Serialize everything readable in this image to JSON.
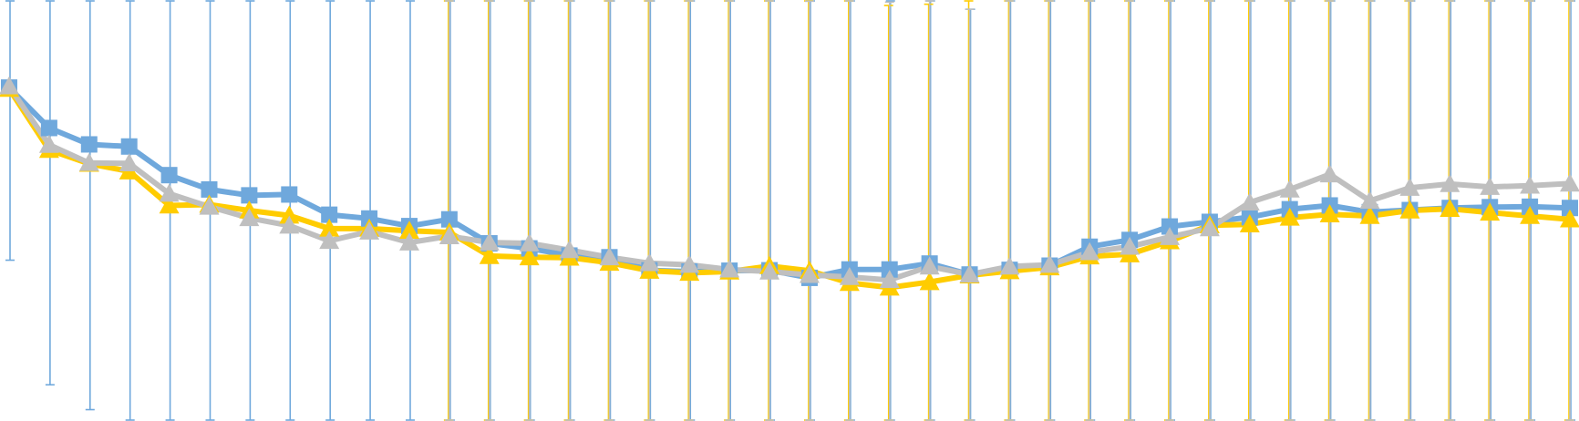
{
  "chart_data": {
    "type": "line",
    "title": "",
    "xlabel": "",
    "ylabel": "",
    "error_bars": true,
    "grid": false,
    "legend": "none",
    "x": [
      1,
      2,
      3,
      4,
      5,
      6,
      7,
      8,
      9,
      10,
      11,
      12,
      13,
      14,
      15,
      16,
      17,
      18,
      19,
      20,
      21,
      22,
      23,
      24,
      25,
      26,
      27,
      28,
      29,
      30,
      31,
      32,
      33,
      34,
      35,
      36,
      37,
      38,
      39,
      40
    ],
    "ylim": [
      0,
      100
    ],
    "series": [
      {
        "color": "#6FA8DC",
        "marker": "square",
        "values": [
          79.2,
          69.6,
          65.7,
          65.2,
          58.4,
          55.0,
          53.6,
          53.8,
          49.0,
          48.1,
          46.3,
          47.9,
          42.2,
          41.0,
          39.3,
          38.9,
          35.8,
          35.5,
          35.7,
          35.8,
          34.0,
          36.0,
          36.0,
          37.4,
          34.8,
          35.9,
          36.9,
          41.4,
          43.0,
          46.2,
          47.3,
          48.4,
          50.3,
          51.2,
          49.6,
          50.1,
          50.6,
          50.8,
          50.9,
          50.6
        ],
        "err": [
          41.0,
          61.0,
          63.0,
          65.0,
          67.0,
          69.0,
          67.0,
          68.0,
          70.0,
          71.0,
          69.0,
          67.0,
          65.0,
          64.0,
          65.0,
          63.0,
          65.0,
          65.0,
          66.0,
          66.0,
          66.0,
          66.0,
          66.0,
          66.0,
          63.0,
          66.0,
          66.0,
          69.0,
          68.0,
          70.0,
          71.0,
          70.0,
          71.0,
          72.0,
          71.0,
          72.0,
          71.0,
          72.0,
          72.0,
          72.0
        ]
      },
      {
        "color": "#FFCC00",
        "marker": "triangle",
        "values": [
          78.9,
          64.4,
          61.1,
          59.3,
          51.2,
          51.4,
          50.0,
          48.8,
          45.7,
          45.7,
          45.2,
          44.8,
          39.2,
          38.9,
          38.8,
          37.6,
          35.7,
          35.2,
          35.5,
          36.8,
          35.7,
          32.8,
          31.7,
          33.0,
          34.6,
          35.6,
          36.5,
          39.1,
          39.6,
          42.7,
          46.5,
          46.7,
          48.3,
          49.1,
          48.7,
          50.0,
          50.4,
          49.5,
          48.7,
          47.9
        ],
        "err": [
          0,
          0,
          0,
          0,
          0,
          0,
          0,
          0,
          0,
          0,
          0,
          67.0,
          67.0,
          63.0,
          63.0,
          66.0,
          67.0,
          68.0,
          67.0,
          67.0,
          67.0,
          68.0,
          67.0,
          66.0,
          67.0,
          67.0,
          67.0,
          70.0,
          69.0,
          72.0,
          69.0,
          66.0,
          63.0,
          63.0,
          70.0,
          66.0,
          63.0,
          64.0,
          65.0,
          65.0
        ]
      },
      {
        "color": "#BFBFBF",
        "marker": "triangle",
        "values": [
          79.5,
          65.6,
          61.3,
          61.2,
          54.0,
          50.9,
          48.2,
          46.4,
          42.8,
          45.0,
          42.4,
          43.9,
          42.4,
          42.2,
          40.6,
          38.9,
          37.5,
          37.1,
          36.0,
          35.5,
          34.7,
          34.2,
          33.5,
          36.7,
          34.8,
          36.7,
          37.1,
          40.1,
          41.4,
          43.7,
          45.8,
          51.9,
          55.0,
          58.6,
          52.3,
          55.4,
          56.3,
          55.6,
          55.9,
          56.4
        ],
        "err": [
          0,
          0,
          0,
          0,
          0,
          0,
          0,
          0,
          0,
          0,
          0,
          72.0,
          67.0,
          64.0,
          63.0,
          62.0,
          63.0,
          65.0,
          65.0,
          65.0,
          65.0,
          67.0,
          66.0,
          65.0,
          63.0,
          66.0,
          65.0,
          72.0,
          73.0,
          75.0,
          74.0,
          72.0,
          75.0,
          75.0,
          75.0,
          75.0,
          77.0,
          77.0,
          77.0,
          77.0
        ]
      }
    ]
  }
}
